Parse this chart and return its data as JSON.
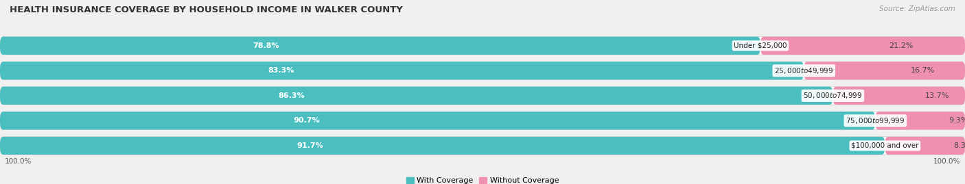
{
  "title": "HEALTH INSURANCE COVERAGE BY HOUSEHOLD INCOME IN WALKER COUNTY",
  "source": "Source: ZipAtlas.com",
  "categories": [
    "Under $25,000",
    "$25,000 to $49,999",
    "$50,000 to $74,999",
    "$75,000 to $99,999",
    "$100,000 and over"
  ],
  "with_coverage": [
    78.8,
    83.3,
    86.3,
    90.7,
    91.7
  ],
  "without_coverage": [
    21.2,
    16.7,
    13.7,
    9.3,
    8.3
  ],
  "color_coverage": "#4bbfbf",
  "color_no_coverage": "#f090b0",
  "bar_height": 0.72,
  "bg_color": "#f0f0f0",
  "bar_bg_color": "#ffffff",
  "title_fontsize": 9.5,
  "label_fontsize": 8,
  "tick_fontsize": 7.5,
  "source_fontsize": 7.5,
  "legend_fontsize": 8,
  "left_label_pct": "100.0%",
  "right_label_pct": "100.0%"
}
